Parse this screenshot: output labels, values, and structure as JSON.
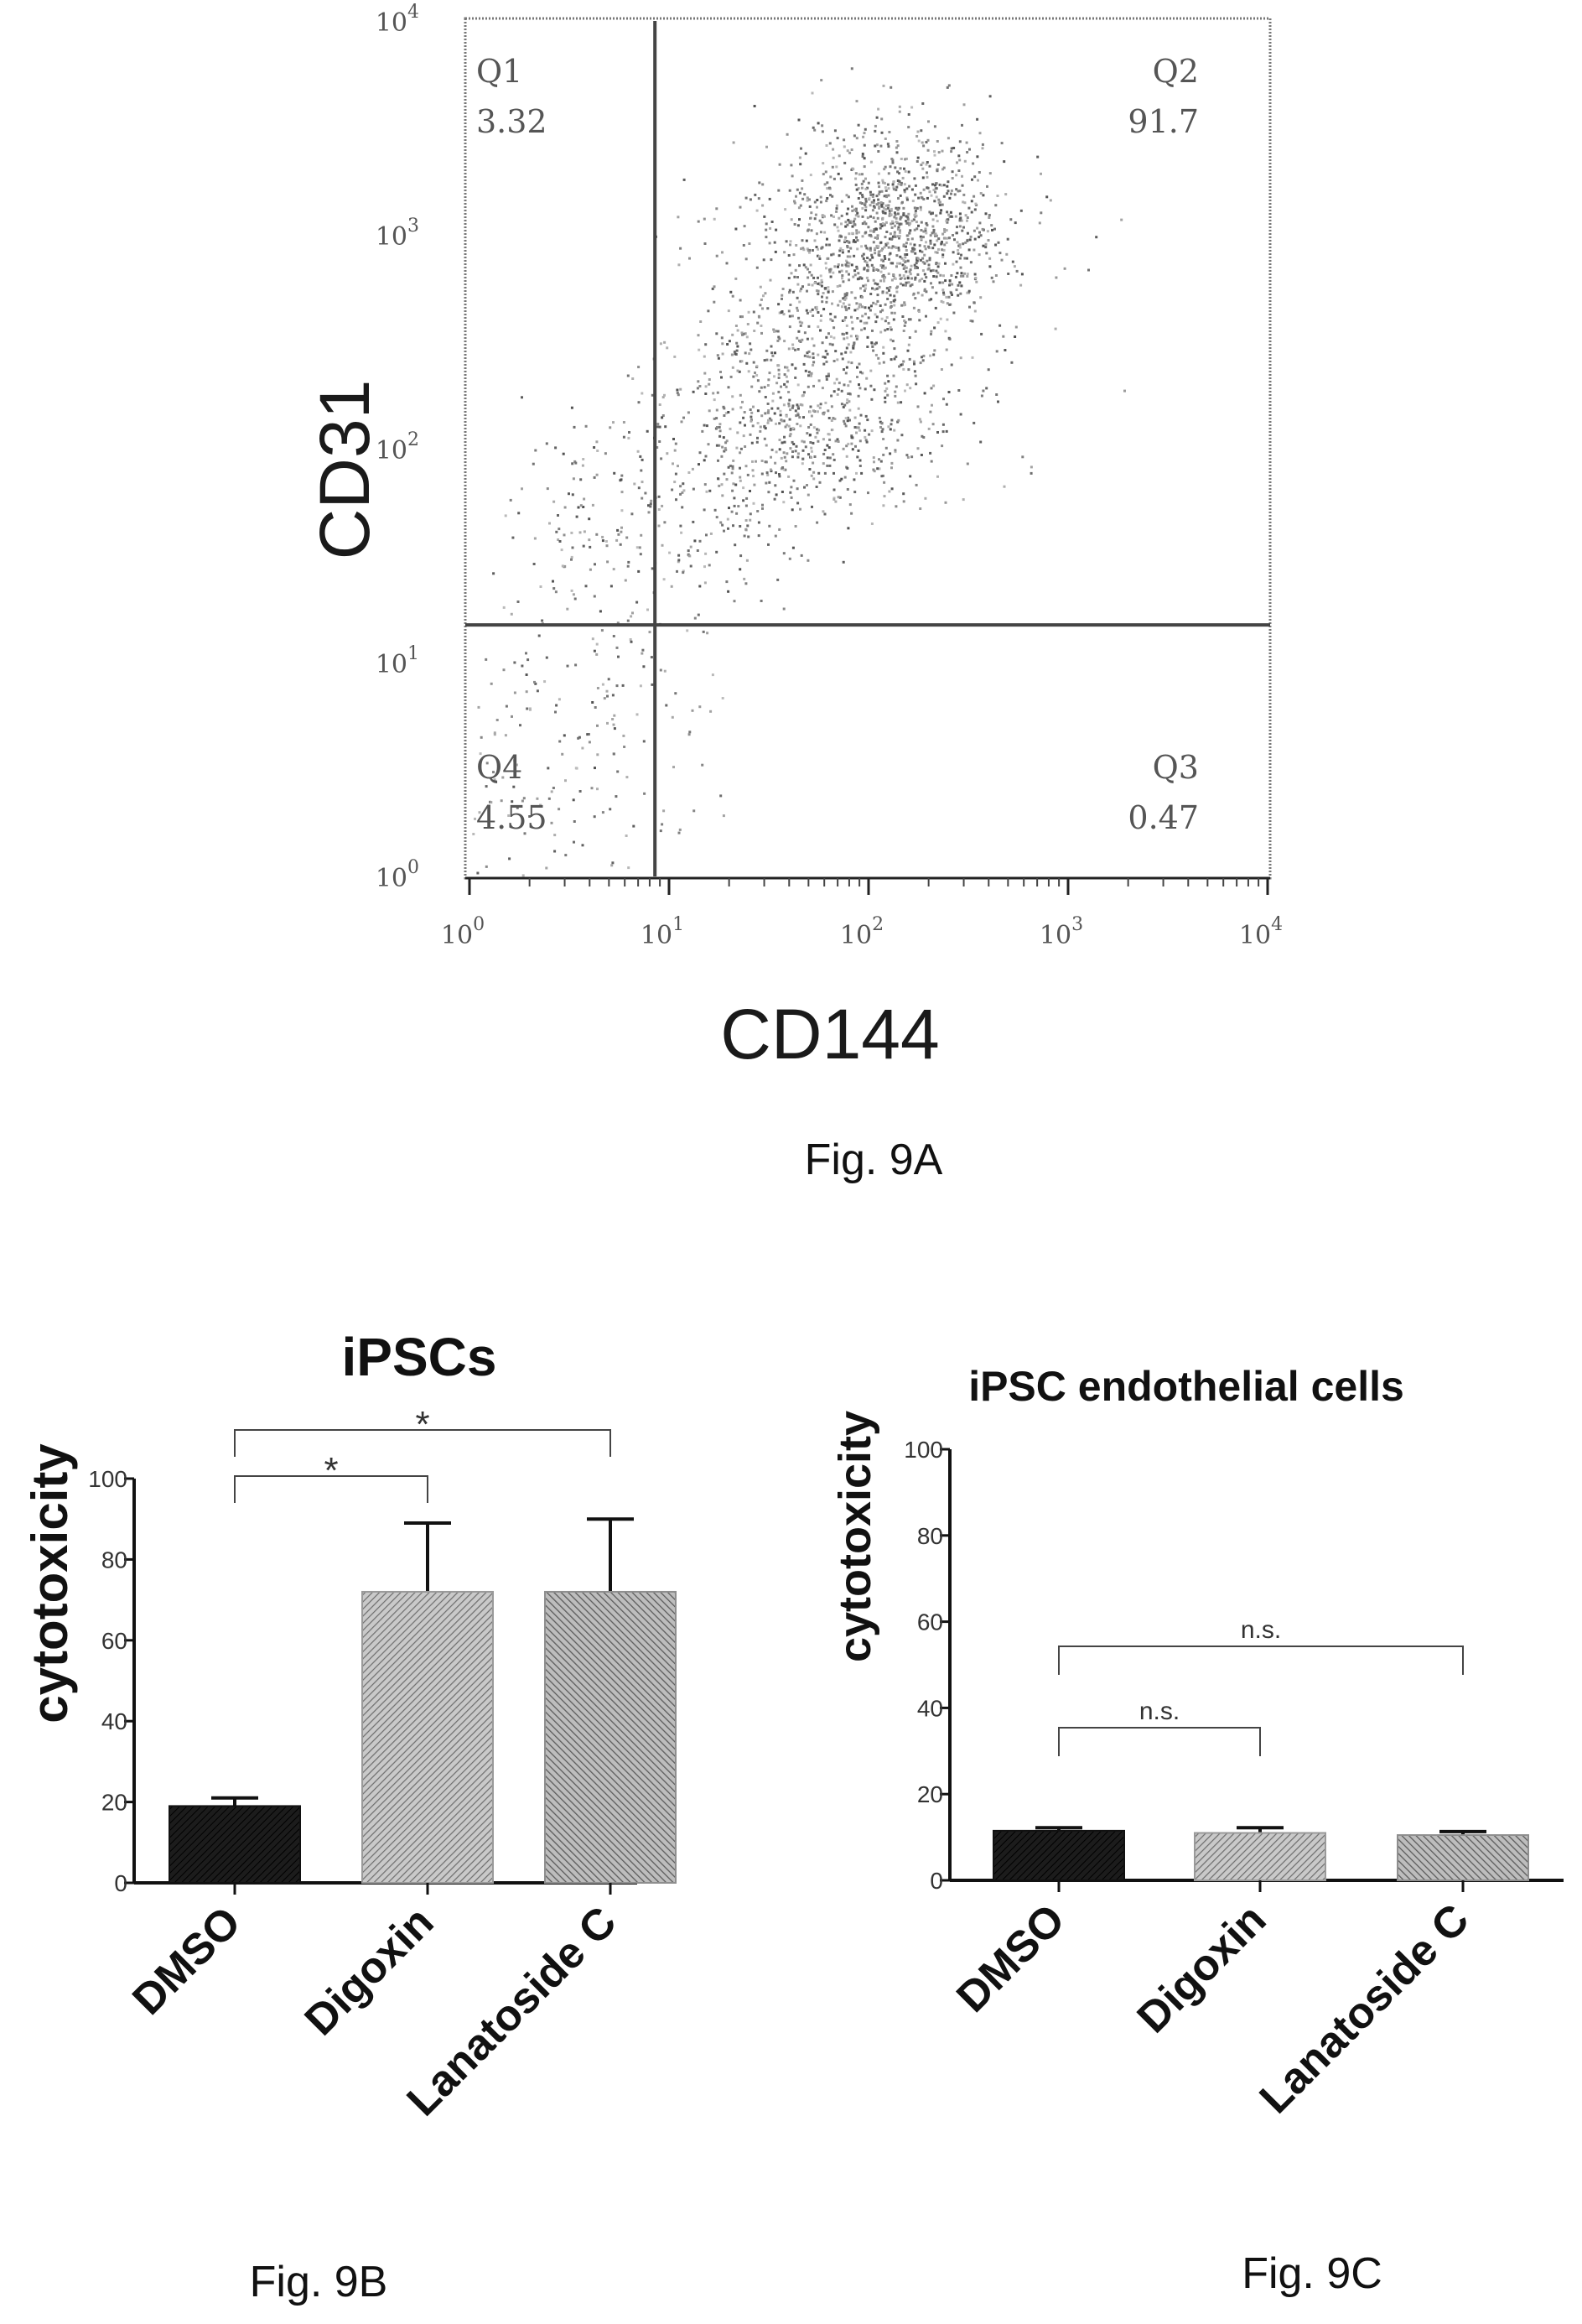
{
  "chart_data": [
    {
      "type": "scatter",
      "figure_label": "Fig. 9A",
      "xlabel": "CD144",
      "ylabel": "CD31",
      "xscale": "log",
      "yscale": "log",
      "xlim": [
        1,
        10000
      ],
      "ylim": [
        1,
        10000
      ],
      "x_ticks": [
        {
          "value": 1,
          "base": "10",
          "exp": "0"
        },
        {
          "value": 10,
          "base": "10",
          "exp": "1"
        },
        {
          "value": 100,
          "base": "10",
          "exp": "2"
        },
        {
          "value": 1000,
          "base": "10",
          "exp": "3"
        },
        {
          "value": 10000,
          "base": "10",
          "exp": "4"
        }
      ],
      "y_ticks": [
        {
          "value": 1,
          "base": "10",
          "exp": "0"
        },
        {
          "value": 10,
          "base": "10",
          "exp": "1"
        },
        {
          "value": 100,
          "base": "10",
          "exp": "2"
        },
        {
          "value": 1000,
          "base": "10",
          "exp": "3"
        },
        {
          "value": 10000,
          "base": "10",
          "exp": "4"
        }
      ],
      "gate_x": 8.5,
      "gate_y": 15,
      "quadrants": [
        {
          "name": "Q1",
          "value": "3.32",
          "position": "top-left"
        },
        {
          "name": "Q2",
          "value": "91.7",
          "position": "top-right"
        },
        {
          "name": "Q3",
          "value": "0.47",
          "position": "bottom-right"
        },
        {
          "name": "Q4",
          "value": "4.55",
          "position": "bottom-left"
        }
      ],
      "population_clusters": [
        {
          "x": 130,
          "y": 1000,
          "spread_x": 0.3,
          "spread_y": 0.3,
          "weight": 0.46
        },
        {
          "x": 45,
          "y": 120,
          "spread_x": 0.35,
          "spread_y": 0.2,
          "weight": 0.18
        },
        {
          "x": 60,
          "y": 320,
          "spread_x": 0.35,
          "spread_y": 0.35,
          "weight": 0.18
        },
        {
          "x": 8,
          "y": 45,
          "spread_x": 0.35,
          "spread_y": 0.35,
          "weight": 0.1
        },
        {
          "x": 2.8,
          "y": 4.5,
          "spread_x": 0.45,
          "spread_y": 0.45,
          "weight": 0.08
        }
      ]
    },
    {
      "type": "bar",
      "figure_label": "Fig. 9B",
      "title": "iPSCs",
      "ylabel": "cytotoxicity",
      "categories": [
        "DMSO",
        "Digoxin",
        "Lanatoside C"
      ],
      "values": [
        19,
        72,
        72
      ],
      "errors": [
        2,
        17,
        18
      ],
      "ylim": [
        0,
        100
      ],
      "yticks": [
        "0",
        "20",
        "40",
        "60",
        "80",
        "100"
      ],
      "bar_colors": [
        "#111111",
        "#9a9a9a",
        "#8e8e8e"
      ],
      "significance": [
        {
          "from": 0,
          "to": 1,
          "label": "*"
        },
        {
          "from": 0,
          "to": 2,
          "label": "*"
        }
      ]
    },
    {
      "type": "bar",
      "figure_label": "Fig. 9C",
      "title": "iPSC endothelial cells",
      "ylabel": "cytotoxicity",
      "categories": [
        "DMSO",
        "Digoxin",
        "Lanatoside C"
      ],
      "values": [
        11.5,
        11,
        10.5
      ],
      "errors": [
        0.7,
        1.2,
        0.8
      ],
      "ylim": [
        0,
        100
      ],
      "yticks": [
        "0",
        "20",
        "40",
        "60",
        "80",
        "100"
      ],
      "bar_colors": [
        "#111111",
        "#9a9a9a",
        "#8e8e8e"
      ],
      "significance": [
        {
          "from": 0,
          "to": 1,
          "label": "n.s."
        },
        {
          "from": 0,
          "to": 2,
          "label": "n.s."
        }
      ]
    }
  ]
}
